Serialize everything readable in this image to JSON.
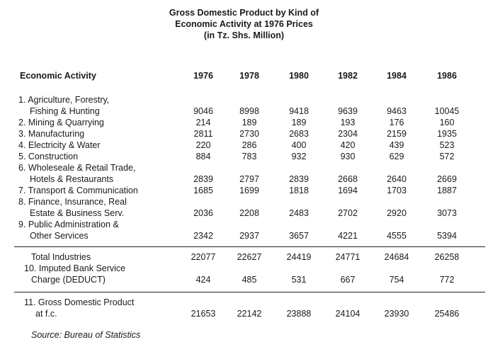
{
  "title": {
    "line1": "Gross Domestic Product by Kind of",
    "line2": "Economic Activity at 1976 Prices",
    "line3": "(in Tz. Shs. Million)"
  },
  "header": {
    "label": "Economic Activity",
    "years": [
      "1976",
      "1978",
      "1980",
      "1982",
      "1984",
      "1986"
    ]
  },
  "rows": [
    {
      "lines": [
        "1. Agriculture, Forestry,",
        "Fishing & Hunting"
      ],
      "values": [
        "9046",
        "8998",
        "9418",
        "9639",
        "9463",
        "10045"
      ]
    },
    {
      "lines": [
        "2. Mining & Quarrying"
      ],
      "values": [
        "214",
        "189",
        "189",
        "193",
        "176",
        "160"
      ]
    },
    {
      "lines": [
        "3. Manufacturing"
      ],
      "values": [
        "2811",
        "2730",
        "2683",
        "2304",
        "2159",
        "1935"
      ]
    },
    {
      "lines": [
        "4. Electricity & Water"
      ],
      "values": [
        "220",
        "286",
        "400",
        "420",
        "439",
        "523"
      ]
    },
    {
      "lines": [
        "5. Construction"
      ],
      "values": [
        "884",
        "783",
        "932",
        "930",
        "629",
        "572"
      ]
    },
    {
      "lines": [
        "6. Wholeseale & Retail Trade,",
        "Hotels & Restaurants"
      ],
      "values": [
        "2839",
        "2797",
        "2839",
        "2668",
        "2640",
        "2669"
      ]
    },
    {
      "lines": [
        "7. Transport & Communication"
      ],
      "values": [
        "1685",
        "1699",
        "1818",
        "1694",
        "1703",
        "1887"
      ]
    },
    {
      "lines": [
        "8. Finance, Insurance, Real",
        "Estate & Business Serv."
      ],
      "values": [
        "2036",
        "2208",
        "2483",
        "2702",
        "2920",
        "3073"
      ]
    },
    {
      "lines": [
        "9. Public Administration &",
        "Other Services"
      ],
      "values": [
        "2342",
        "2937",
        "3657",
        "4221",
        "4555",
        "5394"
      ]
    },
    {
      "lines": [
        "Total Industries"
      ],
      "values": [
        "22077",
        "22627",
        "24419",
        "24771",
        "24684",
        "26258"
      ]
    },
    {
      "lines": [
        "10. Imputed Bank Service",
        "Charge (DEDUCT)"
      ],
      "values": [
        "424",
        "485",
        "531",
        "667",
        "754",
        "772"
      ]
    },
    {
      "lines": [
        "11. Gross Domestic Product",
        "at f.c."
      ],
      "values": [
        "21653",
        "22142",
        "23888",
        "24104",
        "23930",
        "25486"
      ]
    }
  ],
  "source": "Source: Bureau of Statistics"
}
